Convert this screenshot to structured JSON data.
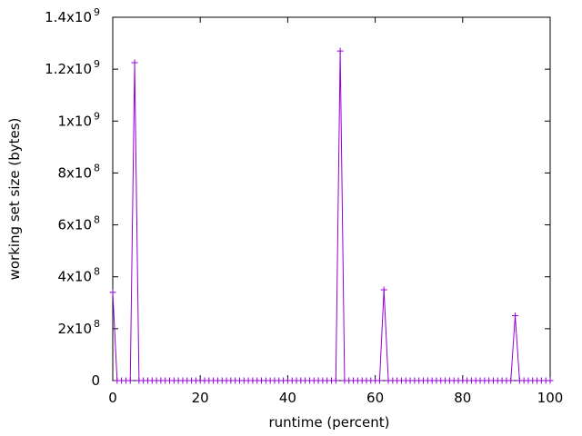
{
  "chart_data": {
    "type": "line",
    "title": "",
    "xlabel": "runtime (percent)",
    "ylabel": "working set size (bytes)",
    "xlim": [
      0,
      100
    ],
    "ylim": [
      0,
      1400000000
    ],
    "grid": false,
    "legend": "none",
    "color": "#9400d3",
    "x_ticks": [
      {
        "value": 0,
        "label": "0"
      },
      {
        "value": 20,
        "label": "20"
      },
      {
        "value": 40,
        "label": "40"
      },
      {
        "value": 60,
        "label": "60"
      },
      {
        "value": 80,
        "label": "80"
      },
      {
        "value": 100,
        "label": "100"
      }
    ],
    "y_ticks": [
      {
        "value": 0,
        "mantissa": "0",
        "exponent": ""
      },
      {
        "value": 200000000,
        "mantissa": "2x10",
        "exponent": "8"
      },
      {
        "value": 400000000,
        "mantissa": "4x10",
        "exponent": "8"
      },
      {
        "value": 600000000,
        "mantissa": "6x10",
        "exponent": "8"
      },
      {
        "value": 800000000,
        "mantissa": "8x10",
        "exponent": "8"
      },
      {
        "value": 1000000000,
        "mantissa": "1x10",
        "exponent": "9"
      },
      {
        "value": 1200000000,
        "mantissa": "1.2x10",
        "exponent": "9"
      },
      {
        "value": 1400000000,
        "mantissa": "1.4x10",
        "exponent": "9"
      }
    ],
    "x": [
      0,
      1,
      2,
      3,
      4,
      5,
      6,
      7,
      8,
      9,
      10,
      11,
      12,
      13,
      14,
      15,
      16,
      17,
      18,
      19,
      20,
      21,
      22,
      23,
      24,
      25,
      26,
      27,
      28,
      29,
      30,
      31,
      32,
      33,
      34,
      35,
      36,
      37,
      38,
      39,
      40,
      41,
      42,
      43,
      44,
      45,
      46,
      47,
      48,
      49,
      50,
      51,
      52,
      53,
      54,
      55,
      56,
      57,
      58,
      59,
      60,
      61,
      62,
      63,
      64,
      65,
      66,
      67,
      68,
      69,
      70,
      71,
      72,
      73,
      74,
      75,
      76,
      77,
      78,
      79,
      80,
      81,
      82,
      83,
      84,
      85,
      86,
      87,
      88,
      89,
      90,
      91,
      92,
      93,
      94,
      95,
      96,
      97,
      98,
      99,
      100
    ],
    "values": [
      340000000,
      0,
      0,
      0,
      0,
      1225000000,
      0,
      0,
      0,
      0,
      0,
      0,
      0,
      0,
      0,
      0,
      0,
      0,
      0,
      0,
      0,
      0,
      0,
      0,
      0,
      0,
      0,
      0,
      0,
      0,
      0,
      0,
      0,
      0,
      0,
      0,
      0,
      0,
      0,
      0,
      0,
      0,
      0,
      0,
      0,
      0,
      0,
      0,
      0,
      0,
      0,
      0,
      1270000000,
      0,
      0,
      0,
      0,
      0,
      0,
      0,
      0,
      0,
      350000000,
      0,
      0,
      0,
      0,
      0,
      0,
      0,
      0,
      0,
      0,
      0,
      0,
      0,
      0,
      0,
      0,
      0,
      0,
      0,
      0,
      0,
      0,
      0,
      0,
      0,
      0,
      0,
      0,
      0,
      250000000,
      0,
      0,
      0,
      0,
      0,
      0,
      0,
      0
    ]
  }
}
